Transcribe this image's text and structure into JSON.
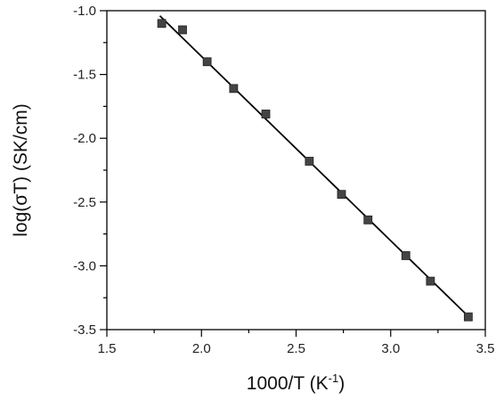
{
  "chart_data": {
    "type": "scatter",
    "xlabel": "1000/T (K",
    "xlabel_sup": "-1",
    "xlabel_end": ")",
    "ylabel": "log(σT) (SK/cm)",
    "xlim": [
      1.5,
      3.5
    ],
    "ylim": [
      -3.5,
      -1.0
    ],
    "x_ticks": [
      1.5,
      2.0,
      2.5,
      3.0,
      3.5
    ],
    "x_tick_labels": [
      "1.5",
      "2.0",
      "2.5",
      "3.0",
      "3.5"
    ],
    "y_ticks": [
      -1.0,
      -1.5,
      -2.0,
      -2.5,
      -3.0,
      -3.5
    ],
    "y_tick_labels": [
      "-1.0",
      "-1.5",
      "-2.0",
      "-2.5",
      "-3.0",
      "-3.5"
    ],
    "grid": false,
    "series": [
      {
        "marker": "square",
        "color": "#444444",
        "x": [
          1.79,
          1.9,
          2.03,
          2.17,
          2.34,
          2.57,
          2.74,
          2.88,
          3.08,
          3.21,
          3.41
        ],
        "y": [
          -1.1,
          -1.15,
          -1.4,
          -1.61,
          -1.81,
          -2.18,
          -2.44,
          -2.64,
          -2.92,
          -3.12,
          -3.4
        ]
      }
    ],
    "fit_line": {
      "x": [
        1.78,
        3.42
      ],
      "y": [
        -1.04,
        -3.41
      ],
      "color": "#000000"
    }
  }
}
